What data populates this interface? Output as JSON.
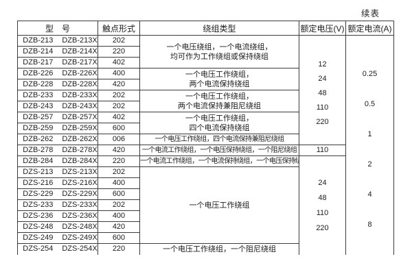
{
  "page": {
    "continued_label": "续表"
  },
  "table": {
    "headers": {
      "model": "型　号",
      "contact": "触点形式",
      "winding": "绕组类型",
      "voltage": "额定电压(V)",
      "current": "额定电流(A)"
    },
    "rows": [
      {
        "model1": "DZB-213",
        "model2": "DZB-213X",
        "contact": "202"
      },
      {
        "model1": "DZB-214",
        "model2": "DZB-214X",
        "contact": "220"
      },
      {
        "model1": "DZB-217",
        "model2": "DZB-217X",
        "contact": "402"
      },
      {
        "model1": "DZB-226",
        "model2": "DZB-226X",
        "contact": "400"
      },
      {
        "model1": "DZB-228",
        "model2": "DZB-228X",
        "contact": "420"
      },
      {
        "model1": "DZB-233",
        "model2": "DZB-233X",
        "contact": "202"
      },
      {
        "model1": "DZB-243",
        "model2": "DZB-243X",
        "contact": "202"
      },
      {
        "model1": "DZB-257",
        "model2": "DZB-257X",
        "contact": "402"
      },
      {
        "model1": "DZB-259",
        "model2": "DZB-259X",
        "contact": "600"
      },
      {
        "model1": "DZB-262",
        "model2": "DZB-262X",
        "contact": "006"
      },
      {
        "model1": "DZB-278",
        "model2": "DZB-278X",
        "contact": "420"
      },
      {
        "model1": "DZB-284",
        "model2": "DZB-284X",
        "contact": "220"
      },
      {
        "model1": "DZS-213",
        "model2": "DZS-213X",
        "contact": "202"
      },
      {
        "model1": "DZS-216",
        "model2": "DZS-216X",
        "contact": "400"
      },
      {
        "model1": "DZS-229",
        "model2": "DZS-229X",
        "contact": "600"
      },
      {
        "model1": "DZS-233",
        "model2": "DZS-233X",
        "contact": "202"
      },
      {
        "model1": "DZS-236",
        "model2": "DZS-236X",
        "contact": "400"
      },
      {
        "model1": "DZS-248",
        "model2": "DZS-248X",
        "contact": "420"
      },
      {
        "model1": "DZS-249",
        "model2": "DZS-249X",
        "contact": "600"
      },
      {
        "model1": "DZS-254",
        "model2": "DZS-254X",
        "contact": "220"
      }
    ],
    "winding_groups": [
      {
        "span": 3,
        "lines": [
          "一个电压绕组，一个电流绕组，",
          "均可作为工作绕组或保持绕组"
        ]
      },
      {
        "span": 2,
        "lines": [
          "一个电压工作绕组，",
          "两个电流保持绕组"
        ]
      },
      {
        "span": 2,
        "lines": [
          "一个电压工作绕组，",
          "两个电流保持兼阻尼绕组"
        ]
      },
      {
        "span": 2,
        "lines": [
          "一个电压工作绕组，",
          "四个电流保持绕组"
        ]
      },
      {
        "span": 1,
        "lines": [
          "一个电压工作绕组，四个电流保持兼阻尼绕组"
        ]
      },
      {
        "span": 1,
        "lines": [
          "一个电流工作绕组，一个电压保持绕组，一个阻尼绕组"
        ]
      },
      {
        "span": 1,
        "lines": [
          "一个电流工作绕组，一个电流保持绕组，一个电压保持绕组"
        ]
      },
      {
        "span": 7,
        "lines": [
          "一个电压工作绕组"
        ]
      },
      {
        "span": 1,
        "lines": [
          "一个电压工作绕组，一个阻尼绕组"
        ]
      }
    ],
    "voltage_groups": [
      {
        "span": 10,
        "values": [
          "12",
          "24",
          "48",
          "110",
          "220"
        ]
      },
      {
        "span": 1,
        "values": [
          "110"
        ]
      },
      {
        "span": 9,
        "values": [
          "24",
          "48",
          "110",
          "220"
        ]
      }
    ],
    "current_group": {
      "span": 20,
      "values": [
        "0.25",
        "0.5",
        "1",
        "2",
        "4",
        "8"
      ]
    }
  }
}
